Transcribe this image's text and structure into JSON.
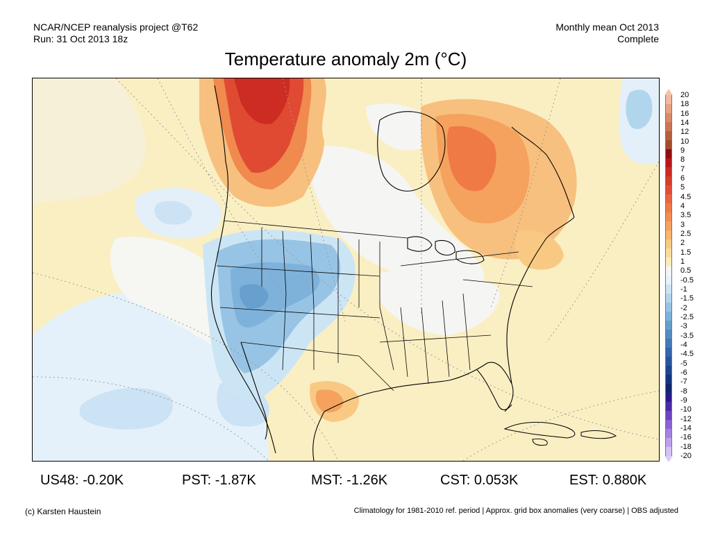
{
  "header": {
    "source_line1": "NCAR/NCEP reanalysis project @T62",
    "source_line2": "Run: 31 Oct 2013 18z",
    "period_line1": "Monthly mean Oct 2013",
    "period_line2": "Complete"
  },
  "title": "Temperature anomaly 2m (°C)",
  "colorbar": {
    "labels": [
      "20",
      "18",
      "16",
      "14",
      "12",
      "10",
      "9",
      "8",
      "7",
      "6",
      "5",
      "4.5",
      "4",
      "3.5",
      "3",
      "2.5",
      "2",
      "1.5",
      "1",
      "0.5",
      "-0.5",
      "-1",
      "-1.5",
      "-2",
      "-2.5",
      "-3",
      "-3.5",
      "-4",
      "-4.5",
      "-5",
      "-6",
      "-7",
      "-8",
      "-9",
      "-10",
      "-12",
      "-14",
      "-16",
      "-18",
      "-20"
    ],
    "colors": [
      "#f3b9a0",
      "#e7a183",
      "#d98b6a",
      "#c97654",
      "#b5603f",
      "#a54a2f",
      "#8f1010",
      "#b8181a",
      "#cc2a22",
      "#d73c2c",
      "#e24e36",
      "#ea6640",
      "#ef7a46",
      "#f28e50",
      "#f5a25e",
      "#f7b56e",
      "#f9c984",
      "#fadd9d",
      "#fbecbb",
      "#f5f5f5",
      "#e6f2fb",
      "#cce5f5",
      "#b2d5ee",
      "#97c4e5",
      "#7eb2da",
      "#679fce",
      "#548cc2",
      "#4479b6",
      "#3567aa",
      "#28559d",
      "#1d4490",
      "#143481",
      "#0f266f",
      "#2c1a8a",
      "#4b2aa7",
      "#6b44bf",
      "#8a62d3",
      "#a681e2",
      "#bfa0ec",
      "#d5c2f5"
    ],
    "top_arrow_color": "#f7c3a6",
    "bottom_arrow_color": "#d8cdf7"
  },
  "stats": {
    "us48": "US48: -0.20K",
    "pst": "PST: -1.87K",
    "mst": "MST: -1.26K",
    "cst": "CST: 0.053K",
    "est": "EST: 0.880K"
  },
  "footer": {
    "credit": "(c) Karsten Haustein",
    "note": "Climatology for 1981-2010 ref. period | Approx. grid box anomalies (very coarse) | OBS adjusted"
  }
}
